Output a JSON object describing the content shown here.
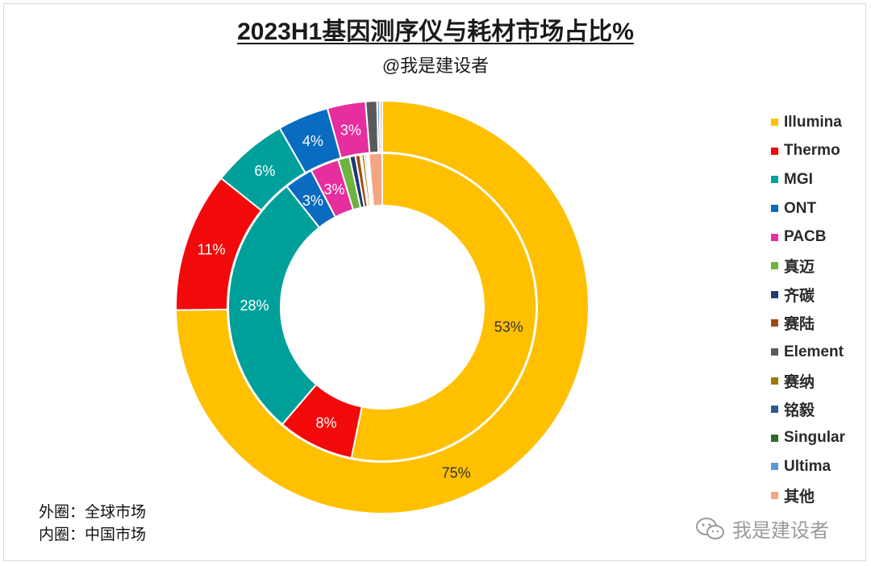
{
  "title": "2023H1基因测序仪与耗材市场占比%",
  "subtitle": "@我是建设者",
  "notes": {
    "outer": "外圈：全球市场",
    "inner": "内圈：中国市场"
  },
  "watermark": "我是建设者",
  "chart_data": {
    "type": "donut",
    "title": "2023H1基因测序仪与耗材市场占比%",
    "legend_position": "right",
    "series": [
      {
        "name": "全球市场",
        "ring": "outer",
        "categories": [
          "Illumina",
          "Thermo",
          "MGI",
          "ONT",
          "PACB",
          "真迈",
          "齐碳",
          "赛陆",
          "Element",
          "赛纳",
          "铭毅",
          "Singular",
          "Ultima",
          "其他"
        ],
        "values": [
          75,
          11,
          6,
          4,
          3,
          0,
          0,
          0,
          0.9,
          0,
          0,
          0,
          0.2,
          0.2
        ],
        "labels": [
          "75%",
          "11%",
          "6%",
          "4%",
          "3%",
          "",
          "",
          "",
          "",
          "",
          "",
          "",
          "",
          ""
        ]
      },
      {
        "name": "中国市场",
        "ring": "inner",
        "categories": [
          "Illumina",
          "Thermo",
          "MGI",
          "ONT",
          "PACB",
          "真迈",
          "齐碳",
          "赛陆",
          "Element",
          "赛纳",
          "铭毅",
          "Singular",
          "Ultima",
          "其他"
        ],
        "values": [
          53,
          8,
          28,
          3,
          3,
          1.2,
          0.6,
          0.5,
          0.15,
          0.3,
          0.2,
          0.15,
          0.1,
          1.4
        ],
        "labels": [
          "53%",
          "8%",
          "28%",
          "3%",
          "3%",
          "",
          "",
          "",
          "",
          "",
          "",
          "",
          "",
          ""
        ]
      }
    ],
    "legend": [
      {
        "name": "Illumina",
        "color": "#FFC000"
      },
      {
        "name": "Thermo",
        "color": "#F20A0A"
      },
      {
        "name": "MGI",
        "color": "#00A09A"
      },
      {
        "name": "ONT",
        "color": "#0A6CC0"
      },
      {
        "name": "PACB",
        "color": "#E62E9E"
      },
      {
        "name": "真迈",
        "color": "#6DB33F"
      },
      {
        "name": "齐碳",
        "color": "#1F3A6E"
      },
      {
        "name": "赛陆",
        "color": "#9C4A12"
      },
      {
        "name": "Element",
        "color": "#5A5A5A"
      },
      {
        "name": "赛纳",
        "color": "#A07808"
      },
      {
        "name": "铭毅",
        "color": "#2C5C8C"
      },
      {
        "name": "Singular",
        "color": "#2E6B2E"
      },
      {
        "name": "Ultima",
        "color": "#5B9BD5"
      },
      {
        "name": "其他",
        "color": "#F4A582"
      }
    ]
  }
}
